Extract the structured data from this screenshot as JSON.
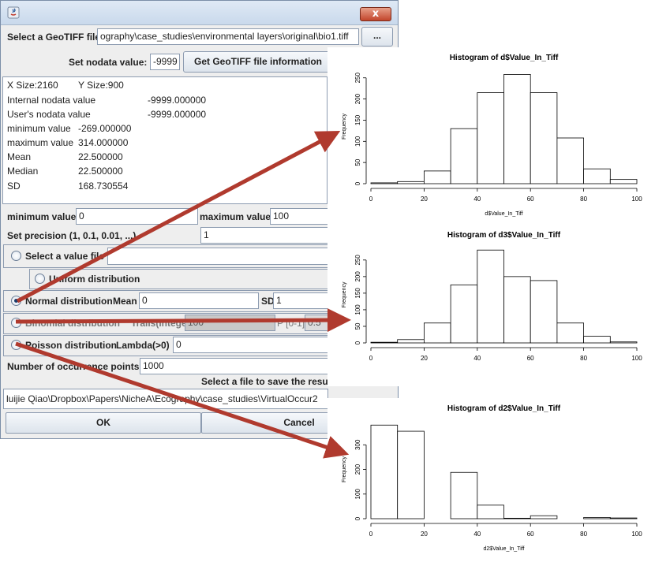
{
  "dialog": {
    "close_label": "x",
    "select_geotiff_label": "Select a GeoTIFF file",
    "geotiff_path": "ography\\case_studies\\environmental layers\\original\\bio1.tiff",
    "browse_label": "...",
    "nodata_label": "Set nodata value:",
    "nodata_value": "-9999",
    "get_info_label": "Get GeoTIFF file information",
    "info": {
      "xsize": "X Size:2160",
      "ysize": "Y Size:900",
      "internal_nodata_label": "Internal nodata value",
      "internal_nodata_value": "-9999.000000",
      "user_nodata_label": "User's nodata value",
      "user_nodata_value": "-9999.000000",
      "minimum_label": "minimum value",
      "minimum_value": "-269.000000",
      "maximum_label": "maximum value",
      "maximum_value": "314.000000",
      "mean_label": "Mean",
      "mean_value": "22.500000",
      "median_label": "Median",
      "median_value": "22.500000",
      "sd_label": "SD",
      "sd_value": "168.730554"
    },
    "min_value_label": "minimum value",
    "min_value": "0",
    "max_value_label": "maximum value",
    "max_value": "100",
    "precision_label": "Set precision (1, 0.1, 0.01, ...)",
    "precision_value": "1",
    "select_value_file_label": "Select a value file",
    "uniform_label": "Uniform distribution",
    "normal_label": "Normal distribution",
    "mean_label": "Mean",
    "normal_mean_value": "0",
    "sd_label": "SD",
    "normal_sd_value": "1",
    "binomial_label": "Binomial distribution",
    "trails_label": "Trails(integer)",
    "trails_value": "100",
    "p_label": "P [0-1]",
    "p_value": "0.5",
    "poisson_label": "Poisson distribution",
    "lambda_label": "Lambda(>0)",
    "lambda_value": "0",
    "occurrence_label": "Number of occurrence points",
    "occurrence_value": "1000",
    "save_result_label": "Select a file to save the result",
    "save_path": "luijie Qiao\\Dropbox\\Papers\\NicheA\\Ecography\\case_studies\\VirtualOccur2",
    "ok_label": "OK",
    "cancel_label": "Cancel"
  },
  "histograms": [
    {
      "title": "Histogram of d$Value_In_Tiff",
      "xlabel": "d$Value_In_Tiff",
      "ylabel": "Frequency",
      "xticks": [
        "0",
        "20",
        "40",
        "60",
        "80",
        "100"
      ],
      "yticks": [
        "0",
        "50",
        "100",
        "150",
        "200",
        "250"
      ],
      "ymax": 270,
      "bins": [
        0,
        10,
        20,
        30,
        40,
        50,
        60,
        70,
        80,
        90,
        100
      ],
      "counts": [
        2,
        5,
        30,
        130,
        215,
        258,
        215,
        108,
        35,
        10
      ]
    },
    {
      "title": "Histogram of d3$Value_In_Tiff",
      "xlabel": "",
      "ylabel": "Frequency",
      "xticks": [
        "0",
        "20",
        "40",
        "60",
        "80",
        "100"
      ],
      "yticks": [
        "0",
        "50",
        "100",
        "150",
        "200",
        "250"
      ],
      "ymax": 290,
      "bins": [
        0,
        10,
        20,
        30,
        40,
        50,
        60,
        70,
        80,
        90,
        100
      ],
      "counts": [
        2,
        10,
        60,
        175,
        280,
        200,
        188,
        60,
        20,
        3
      ]
    },
    {
      "title": "Histogram of d2$Value_In_Tiff",
      "xlabel": "d2$Value_In_Tiff",
      "ylabel": "Frequency",
      "xticks": [
        "0",
        "20",
        "40",
        "60",
        "80",
        "100"
      ],
      "yticks": [
        "0",
        "100",
        "200",
        "300"
      ],
      "ymax": 400,
      "bins": [
        0,
        10,
        20,
        30,
        40,
        50,
        60,
        70,
        80,
        90,
        100
      ],
      "counts": [
        380,
        355,
        0,
        188,
        55,
        2,
        12,
        0,
        5,
        3
      ]
    }
  ],
  "colors": {
    "arrow": "#b03a2e",
    "window_bg": "#eeeeee",
    "close_button": "#c2452b"
  }
}
